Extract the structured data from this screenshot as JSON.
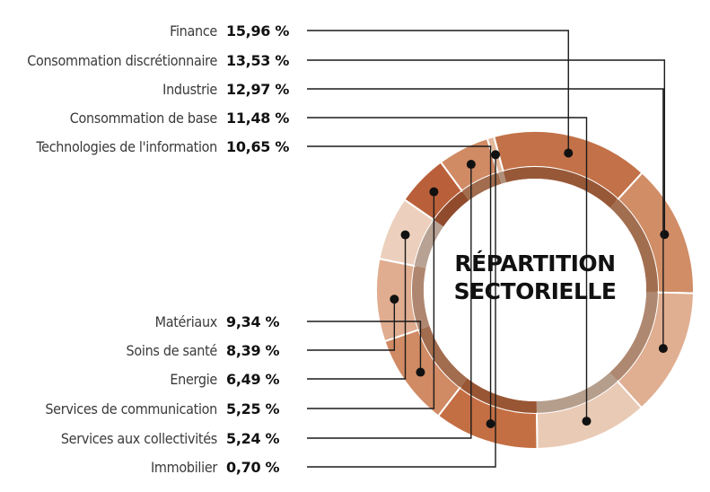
{
  "chart_data": {
    "type": "pie",
    "title_lines": [
      "RÉPARTITION",
      "SECTORIELLE"
    ],
    "slices": [
      {
        "label": "Finance",
        "value_text": "15,96 %",
        "value": 15.96,
        "color": "#c27148"
      },
      {
        "label": "Consommation discrétionnaire",
        "value_text": "13,53 %",
        "value": 13.53,
        "color": "#d08d66"
      },
      {
        "label": "Industrie",
        "value_text": "12,97 %",
        "value": 12.97,
        "color": "#e0ae91"
      },
      {
        "label": "Consommation de base",
        "value_text": "11,48 %",
        "value": 11.48,
        "color": "#e9cab5"
      },
      {
        "label": "Technologies de l'information",
        "value_text": "10,65 %",
        "value": 10.65,
        "color": "#c46e43"
      },
      {
        "label": "Matériaux",
        "value_text": "9,34 %",
        "value": 9.34,
        "color": "#d08a64"
      },
      {
        "label": "Soins de santé",
        "value_text": "8,39 %",
        "value": 8.39,
        "color": "#e0ad90"
      },
      {
        "label": "Energie",
        "value_text": "6,49 %",
        "value": 6.49,
        "color": "#ecd0bd"
      },
      {
        "label": "Services de communication",
        "value_text": "5,25 %",
        "value": 5.25,
        "color": "#b9603a"
      },
      {
        "label": "Services aux collectivités",
        "value_text": "5,24 %",
        "value": 5.24,
        "color": "#d08a64"
      },
      {
        "label": "Immobilier",
        "value_text": "0,70 %",
        "value": 0.7,
        "color": "#e3b89d"
      }
    ]
  }
}
